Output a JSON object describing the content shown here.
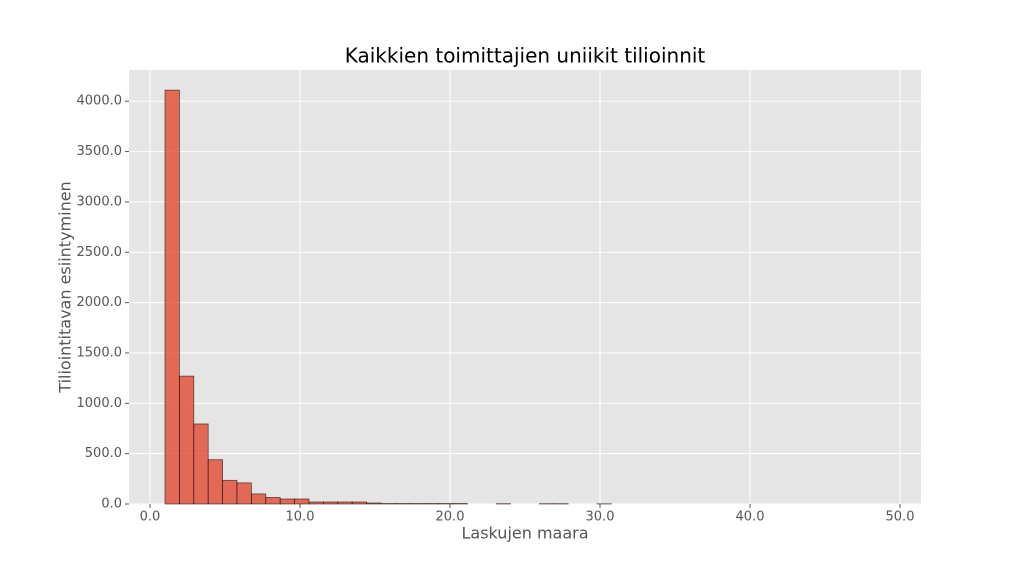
{
  "chart_data": {
    "type": "histogram",
    "title": "Kaikkien toimittajien uniikit tilioinnit",
    "xlabel": "Laskujen maara",
    "ylabel": "Tiliointitavan esiintyminen",
    "color": "#e24a33",
    "bins": [
      1,
      1.96,
      2.92,
      3.88,
      4.84,
      5.8,
      6.76,
      7.72,
      8.68,
      9.64,
      10.6,
      11.56,
      12.52,
      13.48,
      14.44,
      15.4,
      16.36,
      17.32,
      18.28,
      19.24,
      20.2,
      21.16,
      22.12,
      23.08,
      24.04,
      25,
      25.96,
      26.92,
      27.88,
      28.84,
      29.8,
      30.76,
      31.72,
      32.68,
      33.64,
      34.6,
      35.56,
      36.52,
      37.48,
      38.44,
      39.4,
      40.36,
      41.32,
      42.28,
      43.24,
      44.2,
      45.16,
      46.12,
      47.08,
      48.04,
      49
    ],
    "counts": [
      4110,
      1270,
      795,
      440,
      235,
      210,
      100,
      65,
      50,
      50,
      20,
      20,
      20,
      20,
      10,
      5,
      5,
      5,
      5,
      5,
      5,
      0,
      0,
      3,
      0,
      0,
      3,
      3,
      0,
      0,
      2,
      0,
      0,
      0,
      0,
      0,
      0,
      0,
      0,
      0,
      0,
      0,
      0,
      0,
      0,
      0,
      0,
      0,
      0,
      0
    ],
    "xlim": [
      -1.4,
      51.4
    ],
    "ylim": [
      0,
      4310
    ],
    "xticks": [
      {
        "value": 0,
        "label": "0.0"
      },
      {
        "value": 10,
        "label": "10.0"
      },
      {
        "value": 20,
        "label": "20.0"
      },
      {
        "value": 30,
        "label": "30.0"
      },
      {
        "value": 40,
        "label": "40.0"
      },
      {
        "value": 50,
        "label": "50.0"
      }
    ],
    "yticks": [
      {
        "value": 0,
        "label": "0.0"
      },
      {
        "value": 500,
        "label": "500.0"
      },
      {
        "value": 1000,
        "label": "1000.0"
      },
      {
        "value": 1500,
        "label": "1500.0"
      },
      {
        "value": 2000,
        "label": "2000.0"
      },
      {
        "value": 2500,
        "label": "2500.0"
      },
      {
        "value": 3000,
        "label": "3000.0"
      },
      {
        "value": 3500,
        "label": "3500.0"
      },
      {
        "value": 4000,
        "label": "4000.0"
      }
    ],
    "grid": true
  }
}
